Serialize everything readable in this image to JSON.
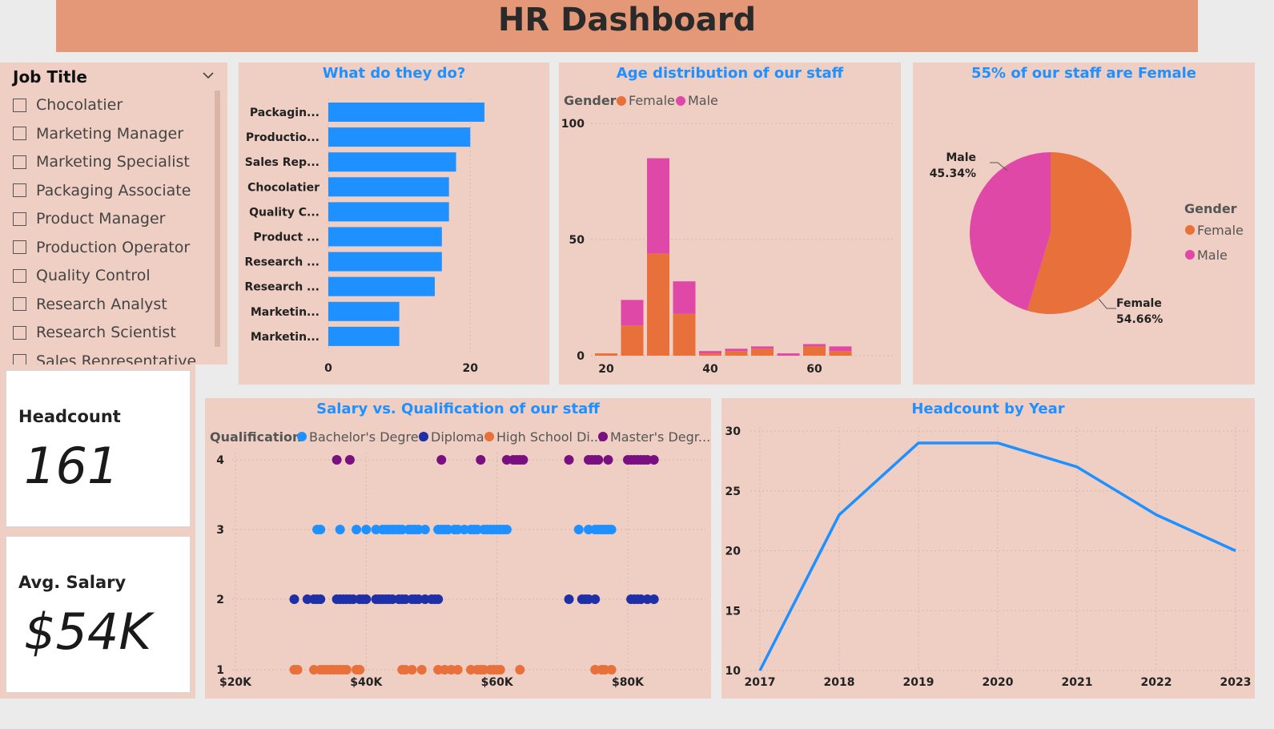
{
  "header": {
    "title": "HR Dashboard"
  },
  "slicer": {
    "title": "Job Title",
    "items": [
      "Chocolatier",
      "Marketing Manager",
      "Marketing Specialist",
      "Packaging Associate",
      "Product Manager",
      "Production Operator",
      "Quality Control",
      "Research Analyst",
      "Research Scientist",
      "Sales Representative"
    ]
  },
  "cards": {
    "headcount": {
      "label": "Headcount",
      "value": "161"
    },
    "salary": {
      "label": "Avg. Salary",
      "value": "$54K"
    }
  },
  "colors": {
    "blue": "#1e90ff",
    "female": "#e8703a",
    "male": "#e048a8",
    "bachelor": "#1e90ff",
    "diploma": "#1f2fa8",
    "highschool": "#e8703a",
    "master": "#7a0f82"
  },
  "chart_data": [
    {
      "id": "jobs",
      "type": "bar",
      "title": "What do they do?",
      "orientation": "horizontal",
      "categories": [
        "Packagin...",
        "Productio...",
        "Sales Rep...",
        "Chocolatier",
        "Quality C...",
        "Product ...",
        "Research ...",
        "Research ...",
        "Marketin...",
        "Marketin..."
      ],
      "values": [
        22,
        20,
        18,
        17,
        17,
        16,
        16,
        15,
        10,
        10
      ],
      "xlim": [
        0,
        26
      ],
      "xticks": [
        0,
        20
      ]
    },
    {
      "id": "age",
      "type": "bar",
      "stacked": true,
      "title": "Age distribution of our staff",
      "legend_title": "Gender",
      "series_names": [
        "Female",
        "Male"
      ],
      "x": [
        20,
        25,
        30,
        35,
        40,
        45,
        50,
        55,
        60,
        65
      ],
      "female": [
        1,
        13,
        44,
        18,
        1,
        2,
        3,
        0,
        4,
        2
      ],
      "male": [
        0,
        11,
        41,
        14,
        1,
        1,
        1,
        1,
        1,
        2
      ],
      "xlim": [
        18,
        70
      ],
      "ylim": [
        0,
        100
      ],
      "yticks": [
        0,
        50,
        100
      ],
      "xticks": [
        20,
        40,
        60
      ]
    },
    {
      "id": "gender",
      "type": "pie",
      "title": "55% of our staff are Female",
      "legend_title": "Gender",
      "slices": [
        {
          "label": "Female",
          "percent_label": "54.66%",
          "value": 54.66
        },
        {
          "label": "Male",
          "percent_label": "45.34%",
          "value": 45.34
        }
      ]
    },
    {
      "id": "salary",
      "type": "scatter",
      "title": "Salary vs. Qualification of our staff",
      "legend_title": "Qualification",
      "legend": [
        "Bachelor's Degree",
        "Diploma",
        "High School Di...",
        "Master's Degr..."
      ],
      "xlim": [
        20000,
        90000
      ],
      "ylim": [
        1,
        4
      ],
      "xtick_labels": [
        "$20K",
        "$40K",
        "$60K",
        "$80K"
      ],
      "xticks": [
        20000,
        40000,
        60000,
        80000
      ],
      "yticks": [
        1,
        2,
        3,
        4
      ],
      "series": [
        {
          "name": "Master's Degree",
          "y": 4,
          "x": [
            35500,
            37500,
            51500,
            57500,
            61500,
            62500,
            63000,
            63500,
            64000,
            71000,
            74000,
            74500,
            75000,
            75500,
            77000,
            80000,
            80500,
            81000,
            81500,
            82000,
            82500,
            83000,
            84000
          ]
        },
        {
          "name": "Bachelor's Degree",
          "y": 3,
          "x": [
            32500,
            33000,
            36000,
            38500,
            40000,
            41500,
            42500,
            43000,
            43500,
            44000,
            44500,
            45000,
            45500,
            46500,
            47000,
            47500,
            48000,
            49000,
            51000,
            51500,
            52000,
            52500,
            53500,
            54000,
            55000,
            56000,
            56500,
            57000,
            58000,
            58500,
            59000,
            59500,
            60000,
            60500,
            61000,
            61500,
            72500,
            74000,
            75000,
            75500,
            76000,
            76500,
            77000,
            77500
          ]
        },
        {
          "name": "Diploma",
          "y": 2,
          "x": [
            29000,
            31000,
            32000,
            32500,
            33000,
            35500,
            36000,
            36500,
            37000,
            37500,
            38000,
            39000,
            39500,
            40000,
            41500,
            42000,
            42500,
            43000,
            43500,
            44000,
            45000,
            45500,
            46000,
            47000,
            47500,
            48000,
            49000,
            50000,
            50500,
            51000,
            71000,
            73000,
            73500,
            74000,
            75000,
            80500,
            81000,
            81500,
            82000,
            83000,
            84000
          ]
        },
        {
          "name": "High School Diploma",
          "y": 1,
          "x": [
            29000,
            29500,
            32000,
            33000,
            33500,
            34000,
            34500,
            35000,
            35500,
            36000,
            36500,
            37000,
            38500,
            39000,
            45500,
            46000,
            47000,
            48500,
            51000,
            52000,
            53000,
            54000,
            56000,
            57000,
            57500,
            58000,
            59000,
            59500,
            60000,
            60500,
            63500,
            75000,
            76000,
            76500,
            77500
          ]
        }
      ]
    },
    {
      "id": "years",
      "type": "line",
      "title": "Headcount by Year",
      "x": [
        "2017",
        "2018",
        "2019",
        "2020",
        "2021",
        "2022",
        "2023"
      ],
      "values": [
        10,
        23,
        29,
        29,
        27,
        23,
        20
      ],
      "ylim": [
        10,
        30
      ],
      "yticks": [
        10,
        15,
        20,
        25,
        30
      ]
    }
  ]
}
